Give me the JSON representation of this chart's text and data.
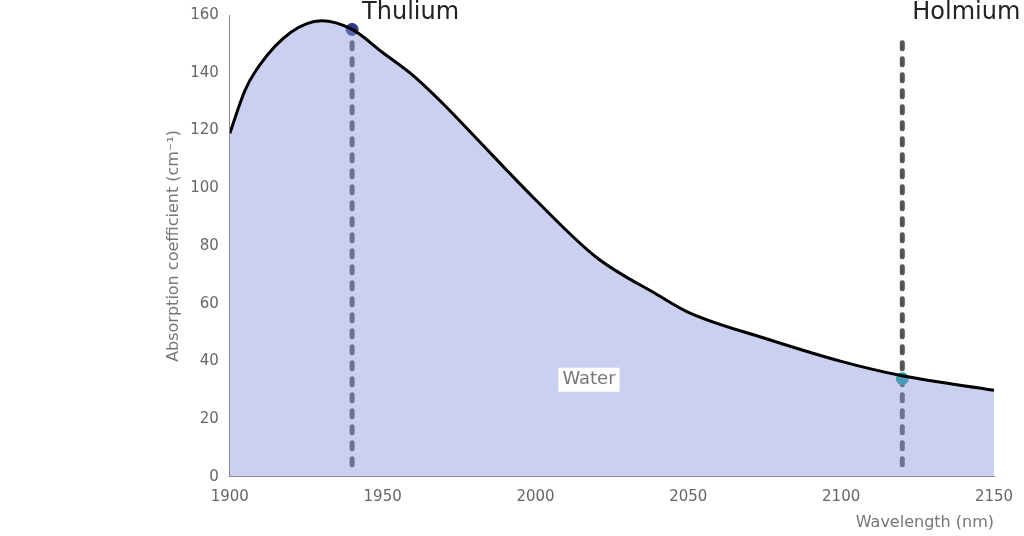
{
  "chart_data": {
    "type": "area",
    "xlabel": "Wavelength (nm)",
    "ylabel": "Absorption coefficient (cm⁻¹)",
    "xlim": [
      1900,
      2150
    ],
    "xticks": [
      1900,
      1950,
      2000,
      2050,
      2100,
      2150
    ],
    "ylim": [
      0,
      160
    ],
    "yticks": [
      0,
      20,
      40,
      60,
      80,
      100,
      120,
      140,
      160
    ],
    "grid": false,
    "legend": false,
    "marker": "none",
    "series": [
      {
        "color": "#000000",
        "x": [
          1900,
          1905,
          1910,
          1920,
          1930,
          1940,
          1950,
          1960,
          1970,
          1980,
          2000,
          2020,
          2040,
          2050,
          2075,
          2100,
          2120,
          2150
        ],
        "values": [
          119,
          134,
          143,
          154,
          158,
          155,
          147,
          139,
          129,
          118,
          96,
          76,
          63,
          57,
          48,
          40,
          35,
          30
        ]
      },
      {
        "type": "scatter",
        "marker": "circle",
        "x": [
          1940,
          2120
        ],
        "values": [
          155,
          34
        ],
        "colors": [
          "#2e3a87",
          "#14a39a"
        ]
      }
    ],
    "ref_lines": [
      {
        "axis": "x",
        "value": 1940,
        "label": "Thulium",
        "color": "#555555",
        "line_style": "dashed"
      },
      {
        "axis": "x",
        "value": 2120,
        "label": "Holmium",
        "color": "#555555",
        "line_style": "dashed"
      }
    ],
    "annotations": [
      "Water"
    ]
  }
}
